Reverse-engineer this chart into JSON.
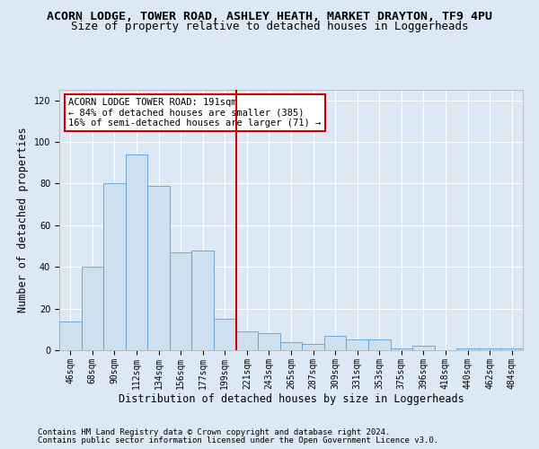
{
  "title": "ACORN LODGE, TOWER ROAD, ASHLEY HEATH, MARKET DRAYTON, TF9 4PU",
  "subtitle": "Size of property relative to detached houses in Loggerheads",
  "xlabel": "Distribution of detached houses by size in Loggerheads",
  "ylabel": "Number of detached properties",
  "footnote1": "Contains HM Land Registry data © Crown copyright and database right 2024.",
  "footnote2": "Contains public sector information licensed under the Open Government Licence v3.0.",
  "annotation_line1": "ACORN LODGE TOWER ROAD: 191sqm",
  "annotation_line2": "← 84% of detached houses are smaller (385)",
  "annotation_line3": "16% of semi-detached houses are larger (71) →",
  "categories": [
    "46sqm",
    "68sqm",
    "90sqm",
    "112sqm",
    "134sqm",
    "156sqm",
    "177sqm",
    "199sqm",
    "221sqm",
    "243sqm",
    "265sqm",
    "287sqm",
    "309sqm",
    "331sqm",
    "353sqm",
    "375sqm",
    "396sqm",
    "418sqm",
    "440sqm",
    "462sqm",
    "484sqm"
  ],
  "values": [
    14,
    40,
    80,
    94,
    79,
    47,
    48,
    15,
    9,
    8,
    4,
    3,
    7,
    5,
    5,
    1,
    2,
    0,
    1,
    1,
    1
  ],
  "bar_color": "#cce0f0",
  "bar_edge_color": "#5a9fd4",
  "vline_color": "#cc0000",
  "vline_x": 7.5,
  "annotation_box_color": "#ffffff",
  "annotation_box_edge": "#cc0000",
  "background_color": "#dce9f5",
  "plot_bg_color": "#dce9f5",
  "grid_color": "#ffffff",
  "title_fontsize": 9.5,
  "subtitle_fontsize": 9,
  "ylabel_fontsize": 8.5,
  "xlabel_fontsize": 8.5,
  "tick_fontsize": 7,
  "annotation_fontsize": 7.5,
  "footnote_fontsize": 6.5,
  "ylim": [
    0,
    125
  ]
}
